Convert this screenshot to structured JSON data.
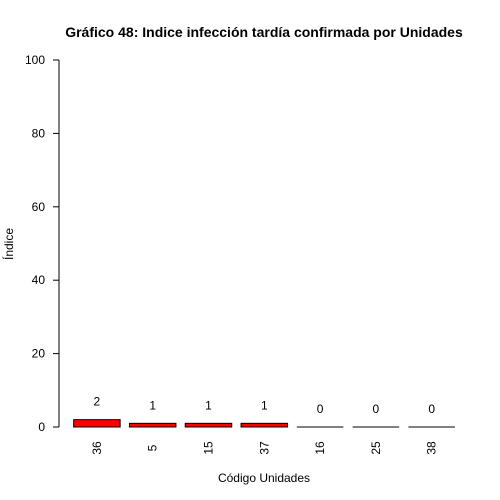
{
  "chart_data": {
    "type": "bar",
    "title": "Gráfico 48: Indice infección tardía confirmada por Unidades",
    "xlabel": "Código Unidades",
    "ylabel": "Índice",
    "categories": [
      "36",
      "5",
      "15",
      "37",
      "16",
      "25",
      "38"
    ],
    "values": [
      2,
      1,
      1,
      1,
      0,
      0,
      0
    ],
    "data_labels": [
      "2",
      "1",
      "1",
      "1",
      "0",
      "0",
      "0"
    ],
    "ylim": [
      0,
      100
    ],
    "yticks": [
      0,
      20,
      40,
      60,
      80,
      100
    ],
    "ytick_labels": [
      "0",
      "20",
      "40",
      "60",
      "80",
      "100"
    ],
    "bar_color": "#ff0000",
    "grid": false,
    "legend": "none"
  }
}
